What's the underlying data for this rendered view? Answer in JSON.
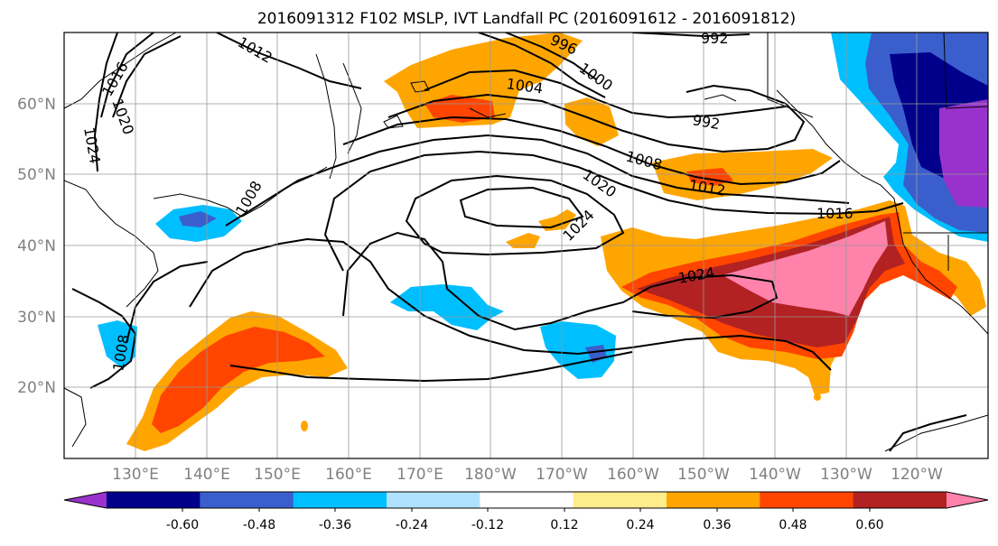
{
  "title": "2016091312 F102 MSLP, IVT Landfall PC (2016091612 - 2016091812)",
  "map": {
    "lat_labels": [
      "60°N",
      "50°N",
      "40°N",
      "30°N",
      "20°N"
    ],
    "lon_labels": [
      "130°E",
      "140°E",
      "150°E",
      "160°E",
      "170°E",
      "180°W",
      "170°W",
      "160°W",
      "150°W",
      "140°W",
      "130°W",
      "120°W"
    ],
    "label_color": "#808080",
    "contour_labels": {
      "c1016_nw": "1016",
      "c1020_nw": "1020",
      "c1024_nw": "1024",
      "c1012_n": "1012",
      "c996": "996",
      "c1000": "1000",
      "c992_top": "992",
      "c1004": "1004",
      "c992_mid": "992",
      "c1008_ne": "1008",
      "c1012_ne": "1012",
      "c1020_c": "1020",
      "c1024_c": "1024",
      "c1016_e": "1016",
      "c1024_se": "1024",
      "c1008_japan": "1008",
      "c1008_sw": "1008"
    }
  },
  "colorbar": {
    "colors": [
      "#9932cc",
      "#00008b",
      "#3a5fcd",
      "#00bfff",
      "#b0e2ff",
      "#ffffff",
      "#ffec8b",
      "#ffa500",
      "#ff4500",
      "#b22222",
      "#ff82ab"
    ],
    "tick_labels": [
      "-0.60",
      "-0.48",
      "-0.36",
      "-0.24",
      "-0.12",
      "0.12",
      "0.24",
      "0.36",
      "0.48",
      "0.60"
    ]
  }
}
